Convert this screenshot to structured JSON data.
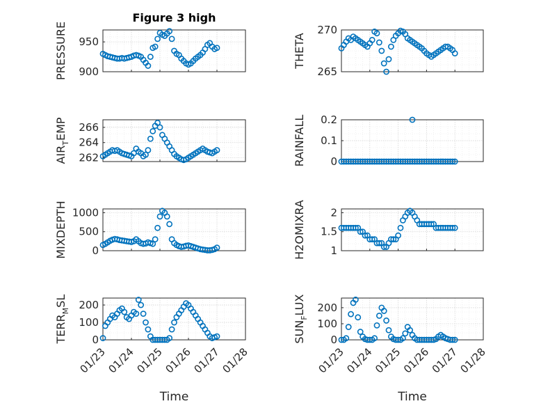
{
  "figure": {
    "title": "Figure 3 high",
    "marker_color": "#0072BD"
  },
  "chart_data": [
    {
      "type": "scatter",
      "ylabel": "PRESSURE",
      "title": "Figure 3 high",
      "xlabel": "",
      "ylim": [
        900,
        970
      ],
      "yticks": [
        900,
        950
      ],
      "ytick_labels": [
        "900",
        "950"
      ],
      "xlim": [
        0,
        5
      ],
      "xticks": [
        0,
        1,
        2,
        3,
        4,
        5
      ],
      "x": [
        0,
        0.083,
        0.167,
        0.25,
        0.333,
        0.417,
        0.5,
        0.583,
        0.667,
        0.75,
        0.833,
        0.917,
        1.0,
        1.083,
        1.167,
        1.25,
        1.333,
        1.417,
        1.5,
        1.583,
        1.667,
        1.75,
        1.833,
        1.917,
        2.0,
        2.083,
        2.167,
        2.25,
        2.333,
        2.417,
        2.5,
        2.583,
        2.667,
        2.75,
        2.833,
        2.917,
        3.0,
        3.083,
        3.167,
        3.25,
        3.333,
        3.417,
        3.5,
        3.583,
        3.667,
        3.75,
        3.833,
        3.917,
        4.0
      ],
      "y": [
        930,
        928,
        926,
        925,
        924,
        923,
        922,
        922,
        923,
        922,
        923,
        924,
        925,
        927,
        928,
        927,
        925,
        920,
        915,
        910,
        925,
        940,
        942,
        955,
        965,
        962,
        960,
        964,
        968,
        955,
        935,
        930,
        928,
        922,
        918,
        914,
        912,
        914,
        918,
        922,
        925,
        928,
        932,
        938,
        945,
        948,
        942,
        938,
        940
      ]
    },
    {
      "type": "scatter",
      "ylabel": "THETA",
      "xlabel": "",
      "ylim": [
        265,
        270
      ],
      "yticks": [
        265,
        270
      ],
      "ytick_labels": [
        "265",
        "270"
      ],
      "xlim": [
        0,
        5
      ],
      "xticks": [
        0,
        1,
        2,
        3,
        4,
        5
      ],
      "x": [
        0,
        0.083,
        0.167,
        0.25,
        0.333,
        0.417,
        0.5,
        0.583,
        0.667,
        0.75,
        0.833,
        0.917,
        1.0,
        1.083,
        1.167,
        1.25,
        1.333,
        1.417,
        1.5,
        1.583,
        1.667,
        1.75,
        1.833,
        1.917,
        2.0,
        2.083,
        2.167,
        2.25,
        2.333,
        2.417,
        2.5,
        2.583,
        2.667,
        2.75,
        2.833,
        2.917,
        3.0,
        3.083,
        3.167,
        3.25,
        3.333,
        3.417,
        3.5,
        3.583,
        3.667,
        3.75,
        3.833,
        3.917,
        4.0
      ],
      "y": [
        267.8,
        268.2,
        268.6,
        269.0,
        268.8,
        269.2,
        269.0,
        268.8,
        268.6,
        268.4,
        268.2,
        268.0,
        268.4,
        268.8,
        269.8,
        269.6,
        268.5,
        267.5,
        266.0,
        265.0,
        266.5,
        268.0,
        268.8,
        269.3,
        269.6,
        269.9,
        269.8,
        269.5,
        269.0,
        268.8,
        268.6,
        268.4,
        268.2,
        268.0,
        267.8,
        267.5,
        267.2,
        267.0,
        266.8,
        267.0,
        267.2,
        267.4,
        267.6,
        267.8,
        268.0,
        268.0,
        267.8,
        267.6,
        267.2
      ]
    },
    {
      "type": "scatter",
      "ylabel": "AIR_TEMP",
      "ylabel_parts": [
        "AIR",
        "T",
        "EMP"
      ],
      "xlabel": "",
      "ylim": [
        261.5,
        267
      ],
      "yticks": [
        262,
        264,
        266
      ],
      "ytick_labels": [
        "262",
        "264",
        "266"
      ],
      "xlim": [
        0,
        5
      ],
      "xticks": [
        0,
        1,
        2,
        3,
        4,
        5
      ],
      "x": [
        0,
        0.083,
        0.167,
        0.25,
        0.333,
        0.417,
        0.5,
        0.583,
        0.667,
        0.75,
        0.833,
        0.917,
        1.0,
        1.083,
        1.167,
        1.25,
        1.333,
        1.417,
        1.5,
        1.583,
        1.667,
        1.75,
        1.833,
        1.917,
        2.0,
        2.083,
        2.167,
        2.25,
        2.333,
        2.417,
        2.5,
        2.583,
        2.667,
        2.75,
        2.833,
        2.917,
        3.0,
        3.083,
        3.167,
        3.25,
        3.333,
        3.417,
        3.5,
        3.583,
        3.667,
        3.75,
        3.833,
        3.917,
        4.0
      ],
      "y": [
        262.2,
        262.4,
        262.6,
        262.8,
        263.0,
        262.9,
        263.0,
        262.8,
        262.6,
        262.5,
        262.4,
        262.3,
        262.2,
        262.6,
        263.2,
        262.8,
        262.6,
        262.2,
        262.4,
        263.0,
        264.5,
        265.5,
        266.2,
        266.6,
        266.0,
        265.0,
        264.5,
        264.0,
        263.5,
        263.0,
        262.5,
        262.2,
        262.0,
        261.8,
        261.7,
        261.8,
        262.0,
        262.2,
        262.4,
        262.6,
        262.8,
        263.0,
        263.2,
        263.0,
        262.8,
        262.7,
        262.6,
        262.8,
        263.0
      ]
    },
    {
      "type": "scatter",
      "ylabel": "RAINFALL",
      "xlabel": "",
      "ylim": [
        0,
        0.2
      ],
      "yticks": [
        0,
        0.1,
        0.2
      ],
      "ytick_labels": [
        "0",
        "0.1",
        "0.2"
      ],
      "xlim": [
        0,
        5
      ],
      "xticks": [
        0,
        1,
        2,
        3,
        4,
        5
      ],
      "x": [
        0,
        0.083,
        0.167,
        0.25,
        0.333,
        0.417,
        0.5,
        0.583,
        0.667,
        0.75,
        0.833,
        0.917,
        1.0,
        1.083,
        1.167,
        1.25,
        1.333,
        1.417,
        1.5,
        1.583,
        1.667,
        1.75,
        1.833,
        1.917,
        2.0,
        2.083,
        2.167,
        2.25,
        2.333,
        2.417,
        2.5,
        2.583,
        2.667,
        2.75,
        2.833,
        2.917,
        3.0,
        3.083,
        3.167,
        3.25,
        3.333,
        3.417,
        3.5,
        3.583,
        3.667,
        3.75,
        3.833,
        3.917,
        4.0,
        2.5
      ],
      "y": [
        0,
        0,
        0,
        0,
        0,
        0,
        0,
        0,
        0,
        0,
        0,
        0,
        0,
        0,
        0,
        0,
        0,
        0,
        0,
        0,
        0,
        0,
        0,
        0,
        0,
        0,
        0,
        0,
        0,
        0,
        0,
        0,
        0,
        0,
        0,
        0,
        0,
        0,
        0,
        0,
        0,
        0,
        0,
        0,
        0,
        0,
        0,
        0,
        0,
        0.2
      ]
    },
    {
      "type": "scatter",
      "ylabel": "MIXDEPTH",
      "xlabel": "",
      "ylim": [
        0,
        1100
      ],
      "yticks": [
        0,
        500,
        1000
      ],
      "ytick_labels": [
        "0",
        "500",
        "1000"
      ],
      "xlim": [
        0,
        5
      ],
      "xticks": [
        0,
        1,
        2,
        3,
        4,
        5
      ],
      "x": [
        0,
        0.083,
        0.167,
        0.25,
        0.333,
        0.417,
        0.5,
        0.583,
        0.667,
        0.75,
        0.833,
        0.917,
        1.0,
        1.083,
        1.167,
        1.25,
        1.333,
        1.417,
        1.5,
        1.583,
        1.667,
        1.75,
        1.833,
        1.917,
        2.0,
        2.083,
        2.167,
        2.25,
        2.333,
        2.417,
        2.5,
        2.583,
        2.667,
        2.75,
        2.833,
        2.917,
        3.0,
        3.083,
        3.167,
        3.25,
        3.333,
        3.417,
        3.5,
        3.583,
        3.667,
        3.75,
        3.833,
        3.917,
        4.0
      ],
      "y": [
        150,
        180,
        220,
        260,
        290,
        310,
        300,
        280,
        270,
        260,
        250,
        240,
        230,
        250,
        300,
        250,
        200,
        180,
        190,
        220,
        200,
        180,
        300,
        600,
        900,
        1050,
        1000,
        900,
        700,
        300,
        200,
        150,
        120,
        100,
        110,
        130,
        140,
        120,
        100,
        80,
        60,
        40,
        30,
        20,
        10,
        10,
        20,
        40,
        80
      ]
    },
    {
      "type": "scatter",
      "ylabel": "H2OMIXRA",
      "xlabel": "",
      "ylim": [
        1,
        2.1
      ],
      "yticks": [
        1,
        1.5,
        2
      ],
      "ytick_labels": [
        "1",
        "1.5",
        "2"
      ],
      "xlim": [
        0,
        5
      ],
      "xticks": [
        0,
        1,
        2,
        3,
        4,
        5
      ],
      "x": [
        0,
        0.083,
        0.167,
        0.25,
        0.333,
        0.417,
        0.5,
        0.583,
        0.667,
        0.75,
        0.833,
        0.917,
        1.0,
        1.083,
        1.167,
        1.25,
        1.333,
        1.417,
        1.5,
        1.583,
        1.667,
        1.75,
        1.833,
        1.917,
        2.0,
        2.083,
        2.167,
        2.25,
        2.333,
        2.417,
        2.5,
        2.583,
        2.667,
        2.75,
        2.833,
        2.917,
        3.0,
        3.083,
        3.167,
        3.25,
        3.333,
        3.417,
        3.5,
        3.583,
        3.667,
        3.75,
        3.833,
        3.917,
        4.0
      ],
      "y": [
        1.6,
        1.6,
        1.6,
        1.6,
        1.6,
        1.6,
        1.6,
        1.6,
        1.5,
        1.5,
        1.4,
        1.4,
        1.3,
        1.3,
        1.3,
        1.2,
        1.2,
        1.2,
        1.1,
        1.1,
        1.2,
        1.3,
        1.3,
        1.3,
        1.4,
        1.6,
        1.8,
        1.9,
        2.0,
        2.05,
        2.0,
        1.9,
        1.8,
        1.7,
        1.7,
        1.7,
        1.7,
        1.7,
        1.7,
        1.7,
        1.6,
        1.6,
        1.6,
        1.6,
        1.6,
        1.6,
        1.6,
        1.6,
        1.6
      ]
    },
    {
      "type": "scatter",
      "ylabel": "TERR_MSL",
      "ylabel_parts": [
        "TERR",
        "M",
        "SL"
      ],
      "xlabel": "Time",
      "ylim": [
        0,
        240
      ],
      "yticks": [
        0,
        100,
        200
      ],
      "ytick_labels": [
        "0",
        "100",
        "200"
      ],
      "xlim": [
        0,
        5
      ],
      "xticks": [
        0,
        1,
        2,
        3,
        4,
        5
      ],
      "xtick_labels": [
        "01/23",
        "01/24",
        "01/25",
        "01/26",
        "01/27",
        "01/28"
      ],
      "x": [
        0,
        0.083,
        0.167,
        0.25,
        0.333,
        0.417,
        0.5,
        0.583,
        0.667,
        0.75,
        0.833,
        0.917,
        1.0,
        1.083,
        1.167,
        1.25,
        1.333,
        1.417,
        1.5,
        1.583,
        1.667,
        1.75,
        1.833,
        1.917,
        2.0,
        2.083,
        2.167,
        2.25,
        2.333,
        2.417,
        2.5,
        2.583,
        2.667,
        2.75,
        2.833,
        2.917,
        3.0,
        3.083,
        3.167,
        3.25,
        3.333,
        3.417,
        3.5,
        3.583,
        3.667,
        3.75,
        3.833,
        3.917,
        4.0
      ],
      "y": [
        10,
        80,
        100,
        120,
        140,
        130,
        150,
        170,
        180,
        160,
        130,
        120,
        140,
        160,
        150,
        230,
        200,
        150,
        100,
        60,
        20,
        0,
        0,
        0,
        0,
        0,
        0,
        0,
        10,
        60,
        100,
        130,
        150,
        170,
        190,
        210,
        200,
        180,
        160,
        140,
        120,
        100,
        80,
        60,
        40,
        20,
        10,
        15,
        20
      ]
    },
    {
      "type": "scatter",
      "ylabel": "SUN_FLUX",
      "ylabel_parts": [
        "SUN",
        "F",
        "LUX"
      ],
      "xlabel": "Time",
      "ylim": [
        0,
        260
      ],
      "yticks": [
        0,
        100,
        200
      ],
      "ytick_labels": [
        "0",
        "100",
        "200"
      ],
      "xlim": [
        0,
        5
      ],
      "xticks": [
        0,
        1,
        2,
        3,
        4,
        5
      ],
      "xtick_labels": [
        "01/23",
        "01/24",
        "01/25",
        "01/26",
        "01/27",
        "01/28"
      ],
      "x": [
        0,
        0.083,
        0.167,
        0.25,
        0.333,
        0.417,
        0.5,
        0.583,
        0.667,
        0.75,
        0.833,
        0.917,
        1.0,
        1.083,
        1.167,
        1.25,
        1.333,
        1.417,
        1.5,
        1.583,
        1.667,
        1.75,
        1.833,
        1.917,
        2.0,
        2.083,
        2.167,
        2.25,
        2.333,
        2.417,
        2.5,
        2.583,
        2.667,
        2.75,
        2.833,
        2.917,
        3.0,
        3.083,
        3.167,
        3.25,
        3.333,
        3.417,
        3.5,
        3.583,
        3.667,
        3.75,
        3.833,
        3.917,
        4.0
      ],
      "y": [
        0,
        0,
        10,
        80,
        160,
        230,
        250,
        140,
        50,
        20,
        5,
        0,
        0,
        0,
        10,
        90,
        150,
        200,
        180,
        120,
        60,
        20,
        5,
        0,
        0,
        0,
        10,
        40,
        80,
        60,
        30,
        10,
        0,
        0,
        0,
        0,
        0,
        0,
        0,
        0,
        5,
        20,
        30,
        20,
        10,
        5,
        0,
        0,
        0
      ]
    }
  ]
}
